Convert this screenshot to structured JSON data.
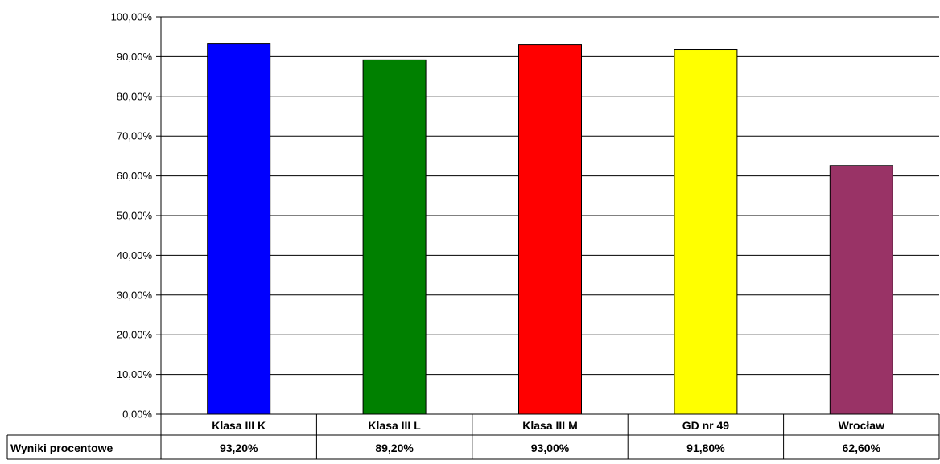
{
  "chart_data": {
    "type": "bar",
    "categories": [
      "Klasa III K",
      "Klasa III L",
      "Klasa III M",
      "GD nr 49",
      "Wrocław"
    ],
    "series": [
      {
        "name": "Wyniki procentowe",
        "values": [
          93.2,
          89.2,
          93.0,
          91.8,
          62.6
        ],
        "labels": [
          "93,20%",
          "89,20%",
          "93,00%",
          "91,80%",
          "62,60%"
        ]
      }
    ],
    "bar_colors": [
      "#0000ff",
      "#008000",
      "#ff0000",
      "#ffff00",
      "#993366"
    ],
    "ylim": [
      0,
      100
    ],
    "yticks": [
      0,
      10,
      20,
      30,
      40,
      50,
      60,
      70,
      80,
      90,
      100
    ],
    "ytick_labels": [
      "0,00%",
      "10,00%",
      "20,00%",
      "30,00%",
      "40,00%",
      "50,00%",
      "60,00%",
      "70,00%",
      "80,00%",
      "90,00%",
      "100,00%"
    ],
    "grid": true,
    "data_table": true
  }
}
